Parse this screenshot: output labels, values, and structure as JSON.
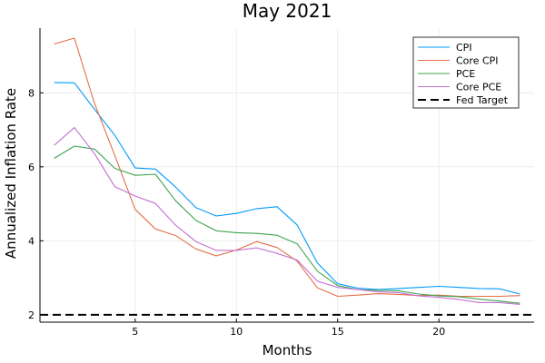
{
  "chart_data": {
    "type": "line",
    "title": "May 2021",
    "xlabel": "Months",
    "ylabel": "Annualized Inflation Rate",
    "xlim": [
      0.3,
      24.7
    ],
    "ylim": [
      1.8,
      9.75
    ],
    "xticks": [
      5,
      10,
      15,
      20
    ],
    "yticks": [
      2,
      4,
      6,
      8
    ],
    "grid": true,
    "legend_position": "top-right",
    "x": [
      1,
      2,
      3,
      4,
      5,
      6,
      7,
      8,
      9,
      10,
      11,
      12,
      13,
      14,
      15,
      16,
      17,
      18,
      19,
      20,
      21,
      22,
      23,
      24
    ],
    "series": [
      {
        "name": "CPI",
        "color": "#009AFA",
        "dash": "solid",
        "values": [
          8.28,
          8.27,
          7.55,
          6.85,
          5.97,
          5.94,
          5.45,
          4.9,
          4.67,
          4.74,
          4.87,
          4.92,
          4.43,
          3.4,
          2.84,
          2.72,
          2.68,
          2.71,
          2.74,
          2.77,
          2.74,
          2.71,
          2.7,
          2.56
        ]
      },
      {
        "name": "Core CPI",
        "color": "#E36F47",
        "dash": "solid",
        "values": [
          9.32,
          9.48,
          7.7,
          6.3,
          4.85,
          4.32,
          4.14,
          3.78,
          3.59,
          3.75,
          3.98,
          3.82,
          3.45,
          2.73,
          2.5,
          2.53,
          2.57,
          2.55,
          2.52,
          2.53,
          2.5,
          2.5,
          2.5,
          2.52
        ]
      },
      {
        "name": "PCE",
        "color": "#3EA44E",
        "dash": "solid",
        "values": [
          6.23,
          6.56,
          6.48,
          5.96,
          5.77,
          5.8,
          5.08,
          4.55,
          4.27,
          4.22,
          4.2,
          4.15,
          3.92,
          3.18,
          2.79,
          2.68,
          2.66,
          2.65,
          2.56,
          2.51,
          2.49,
          2.42,
          2.37,
          2.31
        ]
      },
      {
        "name": "Core PCE",
        "color": "#C270D2",
        "dash": "solid",
        "values": [
          6.58,
          7.06,
          6.35,
          5.46,
          5.21,
          5.01,
          4.42,
          3.98,
          3.74,
          3.74,
          3.81,
          3.66,
          3.48,
          2.91,
          2.74,
          2.68,
          2.62,
          2.6,
          2.51,
          2.47,
          2.41,
          2.33,
          2.33,
          2.28
        ]
      },
      {
        "name": "Fed Target",
        "color": "#000000",
        "dash": "dashed",
        "values": [
          2,
          2,
          2,
          2,
          2,
          2,
          2,
          2,
          2,
          2,
          2,
          2,
          2,
          2,
          2,
          2,
          2,
          2,
          2,
          2,
          2,
          2,
          2,
          2
        ]
      }
    ]
  }
}
